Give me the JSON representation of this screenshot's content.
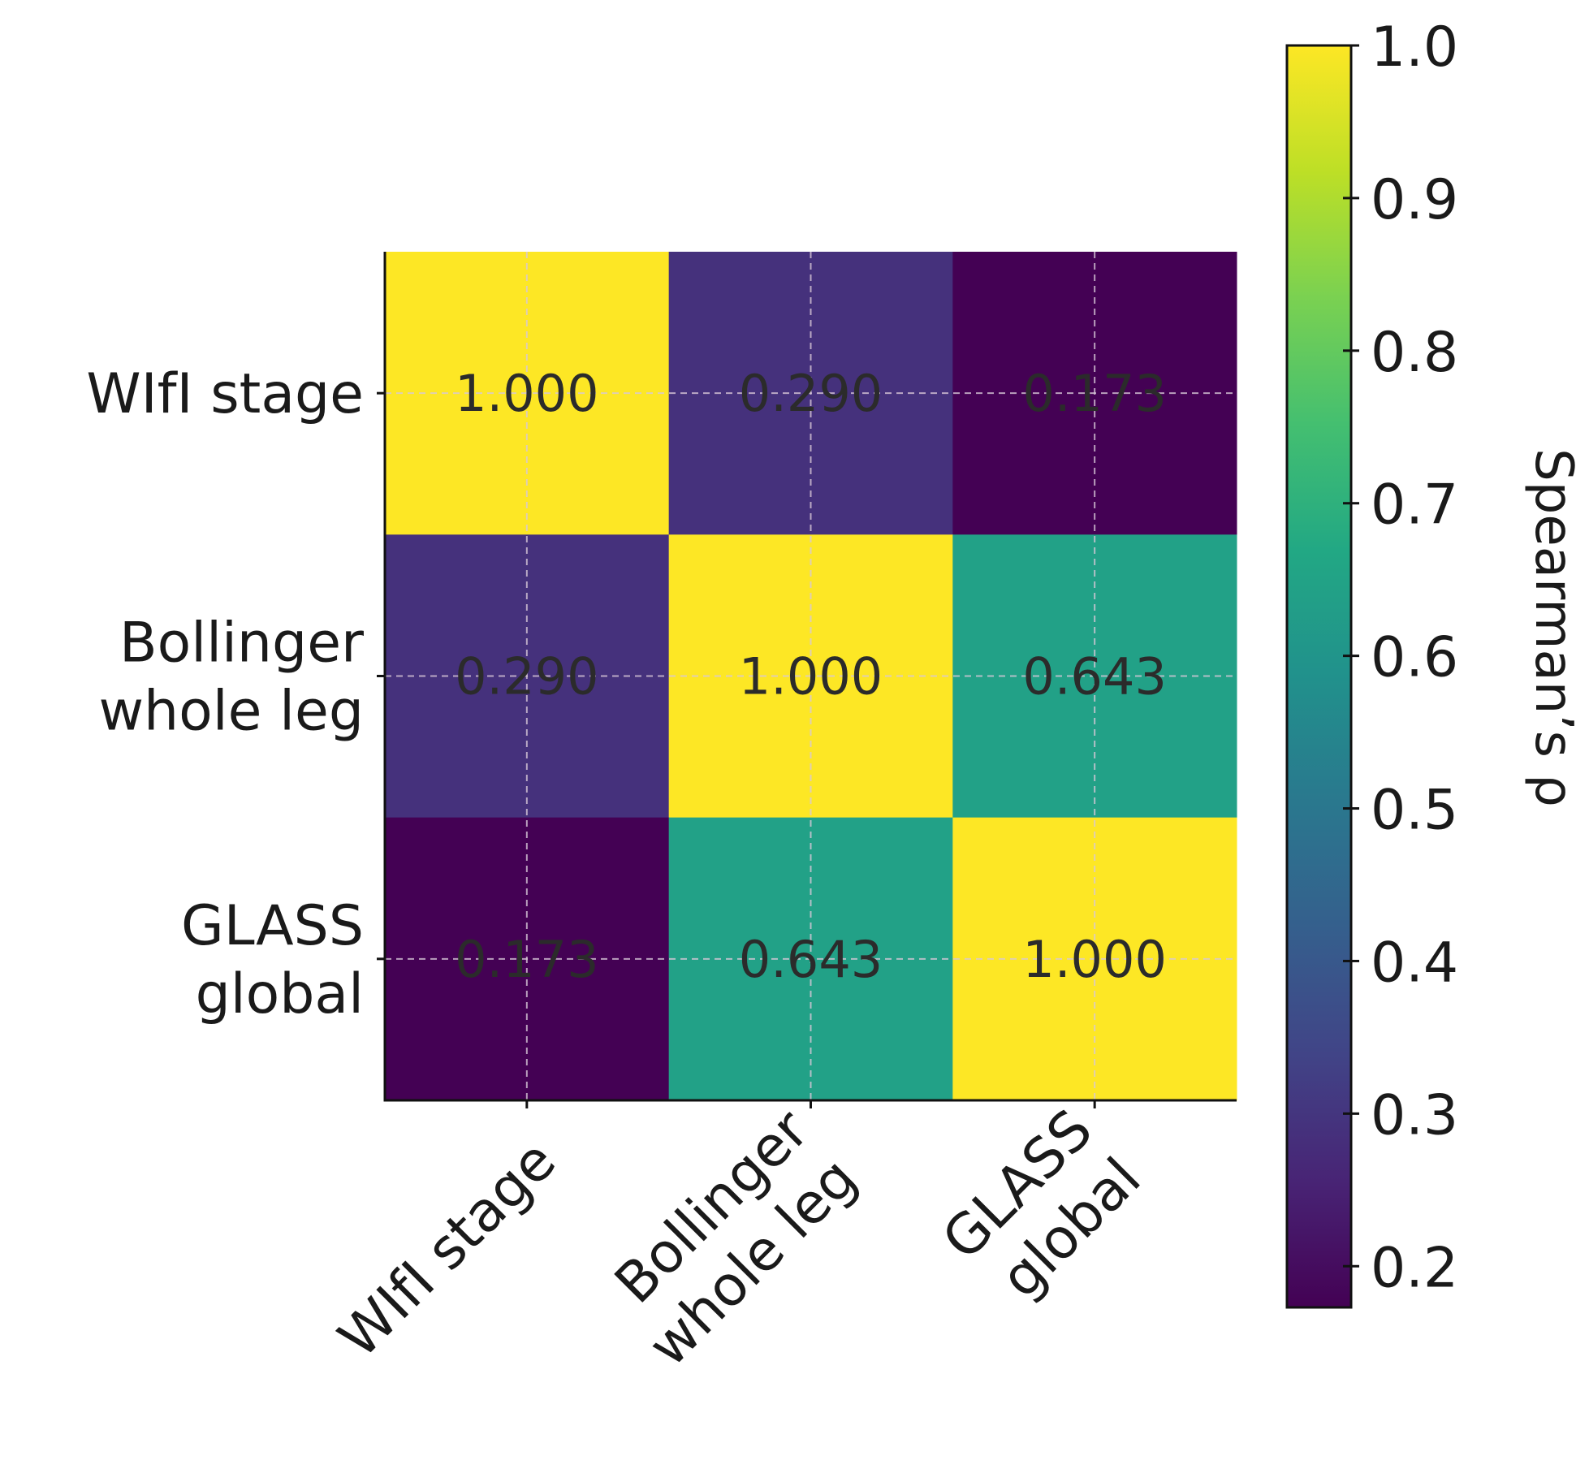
{
  "chart_data": {
    "type": "heatmap",
    "x_categories": [
      "WIfI stage",
      "Bollinger\nwhole leg",
      "GLASS\nglobal"
    ],
    "y_categories": [
      "WIfI stage",
      "Bollinger\nwhole leg",
      "GLASS\nglobal"
    ],
    "values": [
      [
        1.0,
        0.29,
        0.173
      ],
      [
        0.29,
        1.0,
        0.643
      ],
      [
        0.173,
        0.643,
        1.0
      ]
    ],
    "value_labels": [
      [
        "1.000",
        "0.290",
        "0.173"
      ],
      [
        "0.290",
        "1.000",
        "0.643"
      ],
      [
        "0.173",
        "0.643",
        "1.000"
      ]
    ],
    "colormap": "viridis",
    "colorbar_label": "Spearman’s ρ",
    "zlim": [
      0.173,
      1.0
    ],
    "zticks": [
      0.2,
      0.3,
      0.4,
      0.5,
      0.6,
      0.7,
      0.8,
      0.9,
      {
        "value": 1.0,
        "label": "1.0"
      }
    ],
    "grid": true
  }
}
